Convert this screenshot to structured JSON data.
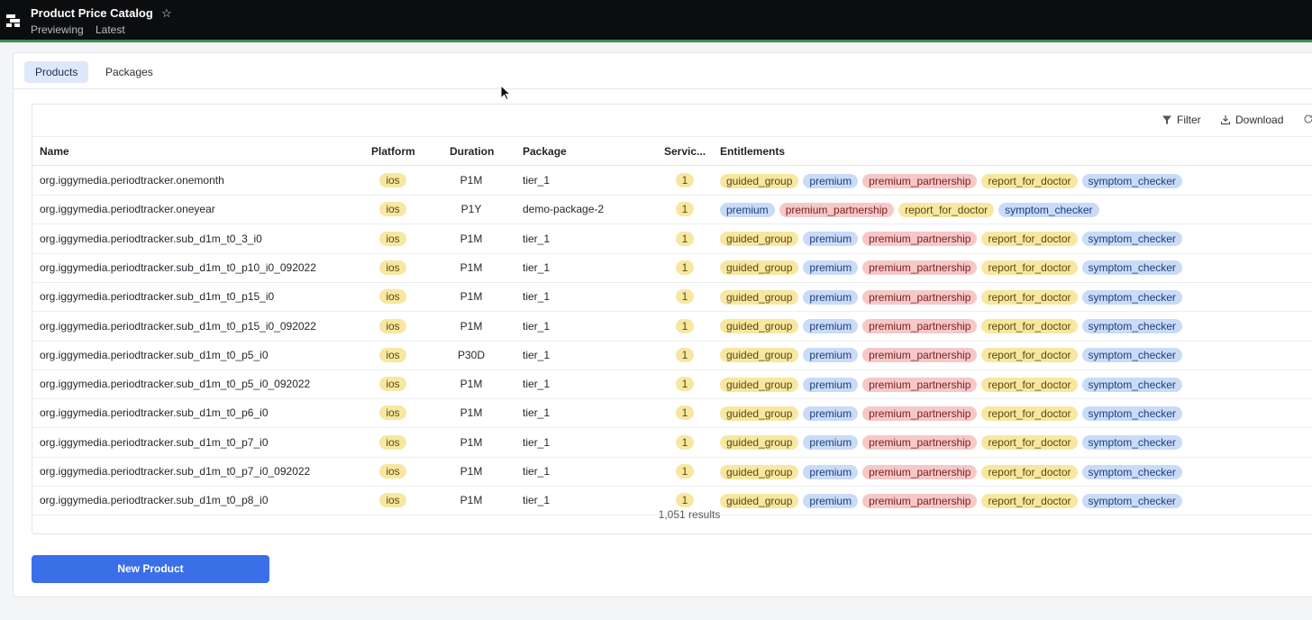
{
  "header": {
    "title": "Product Price Catalog",
    "mode": "Previewing",
    "version": "Latest",
    "favorite_icon": "star-icon"
  },
  "tabs": [
    {
      "label": "Products",
      "active": true
    },
    {
      "label": "Packages",
      "active": false
    }
  ],
  "toolbar": {
    "filter_label": "Filter",
    "download_label": "Download"
  },
  "columns": {
    "name": "Name",
    "platform": "Platform",
    "duration": "Duration",
    "package": "Package",
    "service": "Servic...",
    "entitlements": "Entitlements"
  },
  "rows": [
    {
      "name": "org.iggymedia.periodtracker.onemonth",
      "platform": "ios",
      "duration": "P1M",
      "package": "tier_1",
      "service": "1",
      "entitlements": [
        "guided_group",
        "premium",
        "premium_partnership",
        "report_for_doctor",
        "symptom_checker"
      ]
    },
    {
      "name": "org.iggymedia.periodtracker.oneyear",
      "platform": "ios",
      "duration": "P1Y",
      "package": "demo-package-2",
      "service": "1",
      "entitlements": [
        "premium",
        "premium_partnership",
        "report_for_doctor",
        "symptom_checker"
      ]
    },
    {
      "name": "org.iggymedia.periodtracker.sub_d1m_t0_3_i0",
      "platform": "ios",
      "duration": "P1M",
      "package": "tier_1",
      "service": "1",
      "entitlements": [
        "guided_group",
        "premium",
        "premium_partnership",
        "report_for_doctor",
        "symptom_checker"
      ]
    },
    {
      "name": "org.iggymedia.periodtracker.sub_d1m_t0_p10_i0_092022",
      "platform": "ios",
      "duration": "P1M",
      "package": "tier_1",
      "service": "1",
      "entitlements": [
        "guided_group",
        "premium",
        "premium_partnership",
        "report_for_doctor",
        "symptom_checker"
      ]
    },
    {
      "name": "org.iggymedia.periodtracker.sub_d1m_t0_p15_i0",
      "platform": "ios",
      "duration": "P1M",
      "package": "tier_1",
      "service": "1",
      "entitlements": [
        "guided_group",
        "premium",
        "premium_partnership",
        "report_for_doctor",
        "symptom_checker"
      ]
    },
    {
      "name": "org.iggymedia.periodtracker.sub_d1m_t0_p15_i0_092022",
      "platform": "ios",
      "duration": "P1M",
      "package": "tier_1",
      "service": "1",
      "entitlements": [
        "guided_group",
        "premium",
        "premium_partnership",
        "report_for_doctor",
        "symptom_checker"
      ]
    },
    {
      "name": "org.iggymedia.periodtracker.sub_d1m_t0_p5_i0",
      "platform": "ios",
      "duration": "P30D",
      "package": "tier_1",
      "service": "1",
      "entitlements": [
        "guided_group",
        "premium",
        "premium_partnership",
        "report_for_doctor",
        "symptom_checker"
      ]
    },
    {
      "name": "org.iggymedia.periodtracker.sub_d1m_t0_p5_i0_092022",
      "platform": "ios",
      "duration": "P1M",
      "package": "tier_1",
      "service": "1",
      "entitlements": [
        "guided_group",
        "premium",
        "premium_partnership",
        "report_for_doctor",
        "symptom_checker"
      ]
    },
    {
      "name": "org.iggymedia.periodtracker.sub_d1m_t0_p6_i0",
      "platform": "ios",
      "duration": "P1M",
      "package": "tier_1",
      "service": "1",
      "entitlements": [
        "guided_group",
        "premium",
        "premium_partnership",
        "report_for_doctor",
        "symptom_checker"
      ]
    },
    {
      "name": "org.iggymedia.periodtracker.sub_d1m_t0_p7_i0",
      "platform": "ios",
      "duration": "P1M",
      "package": "tier_1",
      "service": "1",
      "entitlements": [
        "guided_group",
        "premium",
        "premium_partnership",
        "report_for_doctor",
        "symptom_checker"
      ]
    },
    {
      "name": "org.iggymedia.periodtracker.sub_d1m_t0_p7_i0_092022",
      "platform": "ios",
      "duration": "P1M",
      "package": "tier_1",
      "service": "1",
      "entitlements": [
        "guided_group",
        "premium",
        "premium_partnership",
        "report_for_doctor",
        "symptom_checker"
      ]
    },
    {
      "name": "org.iggymedia.periodtracker.sub_d1m_t0_p8_i0",
      "platform": "ios",
      "duration": "P1M",
      "package": "tier_1",
      "service": "1",
      "entitlements": [
        "guided_group",
        "premium",
        "premium_partnership",
        "report_for_doctor",
        "symptom_checker"
      ]
    }
  ],
  "results_count": "1,051 results",
  "new_button_label": "New Product",
  "entitlement_colors": {
    "guided_group": "yellow",
    "premium": "blue",
    "premium_partnership": "red",
    "report_for_doctor": "yellow",
    "symptom_checker": "blue"
  },
  "colors": {
    "topbar": "#0c0d0f",
    "topbar_accent": "#3e8e54",
    "primary_button": "#3b6fe8",
    "tab_active_bg": "#dfe7fb",
    "pill_yellow": "#f7e7a1",
    "pill_blue": "#c9dbf7",
    "pill_red": "#f6c8c8"
  }
}
